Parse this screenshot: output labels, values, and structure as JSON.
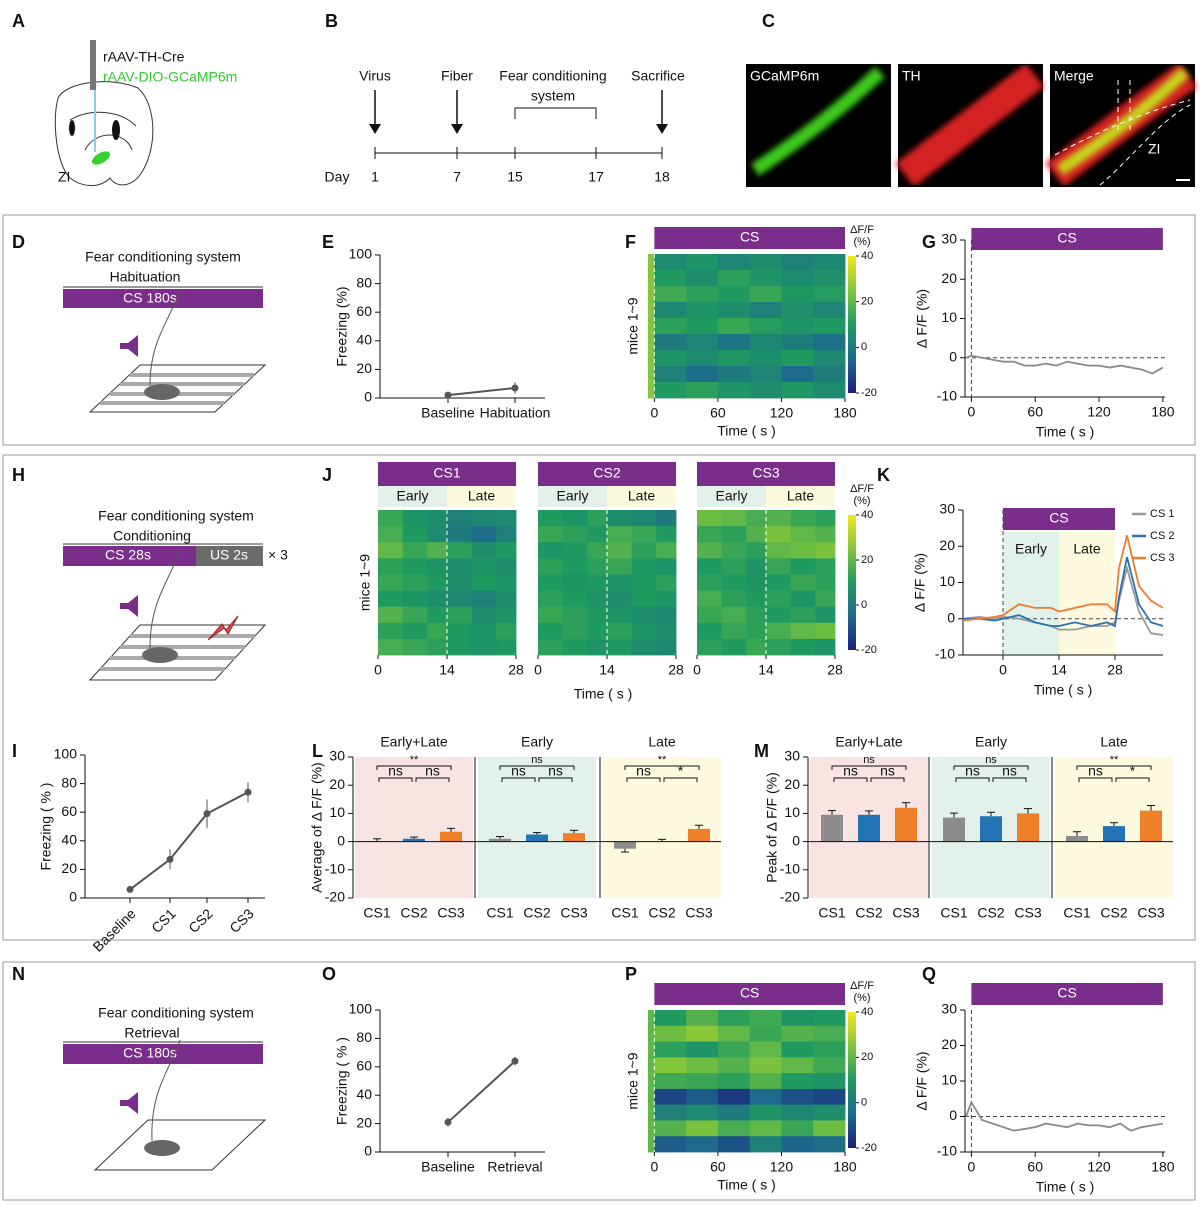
{
  "panel_letters": [
    "A",
    "B",
    "C",
    "D",
    "E",
    "F",
    "G",
    "H",
    "I",
    "J",
    "K",
    "L",
    "M",
    "N",
    "O",
    "P",
    "Q"
  ],
  "schematic_a": {
    "vectors": [
      "rAAV-TH-Cre",
      "rAAV-DIO-GCaMP6m"
    ],
    "region": "ZI"
  },
  "timeline_b": {
    "axis_label": "Day",
    "days": [
      1,
      7,
      15,
      17,
      18
    ],
    "events": [
      "Virus",
      "Fiber",
      "Sacrifice"
    ],
    "bracket_label": [
      "Fear conditioning",
      "system"
    ]
  },
  "images_c": {
    "titles": [
      "GCaMP6m",
      "TH",
      "Merge"
    ],
    "region": "ZI"
  },
  "protocol_d": {
    "lines": [
      "Fear conditioning system",
      "Habituation"
    ],
    "cs": "CS  180s"
  },
  "protocol_h": {
    "lines": [
      "Fear conditioning system",
      "Conditioning"
    ],
    "cs": "CS  28s",
    "us": "US  2s",
    "repeat": "× 3"
  },
  "protocol_n": {
    "lines": [
      "Fear conditioning system",
      "Retrieval"
    ],
    "cs": "CS  180s"
  },
  "chart_data": [
    {
      "type": "line-errorbar",
      "ylabel": "Freezing (%)",
      "categories": [
        "Baseline",
        "Habituation"
      ],
      "values": [
        2,
        7
      ],
      "errors": [
        1,
        4
      ],
      "color": "#555555",
      "ylim": [
        0,
        100
      ],
      "yticks": [
        0,
        20,
        40,
        60,
        80,
        100
      ]
    },
    {
      "type": "heatmap",
      "bar_label": "CS",
      "ylabel": "mice 1~9",
      "xlabel": "Time ( s )",
      "xlim": [
        -6,
        180
      ],
      "xticks": [
        0,
        60,
        120,
        180
      ],
      "xbins": [
        -6,
        0,
        30,
        60,
        90,
        120,
        150,
        180
      ],
      "rows": [
        [
          25,
          5,
          8,
          3,
          6,
          2,
          4
        ],
        [
          25,
          10,
          6,
          12,
          8,
          5,
          7
        ],
        [
          25,
          15,
          12,
          10,
          14,
          9,
          11
        ],
        [
          25,
          4,
          8,
          6,
          2,
          7,
          3
        ],
        [
          25,
          12,
          10,
          14,
          11,
          8,
          10
        ],
        [
          25,
          0,
          3,
          -2,
          4,
          1,
          -3
        ],
        [
          25,
          8,
          5,
          9,
          6,
          10,
          4
        ],
        [
          25,
          2,
          -4,
          0,
          3,
          -5,
          1
        ],
        [
          25,
          10,
          12,
          8,
          6,
          9,
          5
        ]
      ],
      "zlim": [
        -20,
        40
      ],
      "zticks": [
        -20,
        0,
        20,
        40
      ],
      "colorbar_label": [
        "ΔF/F",
        "(%)"
      ],
      "colormap": [
        "#1b1f7a",
        "#1d6a8c",
        "#1f9a60",
        "#82c63c",
        "#f5e61f"
      ]
    },
    {
      "type": "trace",
      "bar_label": "CS",
      "ylabel": "Δ F/F (%)",
      "xlabel": "Time ( s )",
      "xlim": [
        -6,
        182
      ],
      "xticks": [
        0,
        60,
        120,
        180
      ],
      "ylim": [
        -10,
        30
      ],
      "yticks": [
        -10,
        0,
        10,
        20,
        30
      ],
      "x": [
        -5,
        0,
        10,
        20,
        30,
        40,
        50,
        60,
        70,
        80,
        90,
        100,
        110,
        120,
        130,
        140,
        150,
        160,
        170,
        180
      ],
      "series": [
        {
          "color": "#8a8a8a",
          "values": [
            0,
            0.5,
            0,
            -0.5,
            -1,
            -1,
            -2,
            -2,
            -1.5,
            -2,
            -1,
            -1.5,
            -2,
            -2,
            -2.5,
            -2,
            -2.5,
            -3,
            -4,
            -2.5
          ]
        }
      ]
    },
    {
      "type": "heatmap-group",
      "ylabel": "mice 1~9",
      "xlabel": "Time ( s )",
      "xlim": [
        0,
        28
      ],
      "xticks": [
        0,
        14,
        28
      ],
      "xbins": [
        0,
        5,
        10,
        14,
        19,
        24,
        28
      ],
      "divider": 14,
      "segments": [
        "Early",
        "Late"
      ],
      "panels": [
        {
          "title": "CS1",
          "rows": [
            [
              14,
              8,
              6,
              2,
              4,
              5
            ],
            [
              16,
              10,
              5,
              0,
              -4,
              2
            ],
            [
              20,
              14,
              18,
              12,
              6,
              10
            ],
            [
              12,
              10,
              8,
              6,
              8,
              6
            ],
            [
              14,
              12,
              10,
              6,
              10,
              8
            ],
            [
              10,
              8,
              6,
              4,
              2,
              6
            ],
            [
              18,
              14,
              10,
              12,
              6,
              8
            ],
            [
              12,
              10,
              14,
              10,
              8,
              12
            ],
            [
              16,
              14,
              12,
              10,
              8,
              10
            ]
          ]
        },
        {
          "title": "CS2",
          "rows": [
            [
              10,
              8,
              12,
              6,
              4,
              0
            ],
            [
              14,
              12,
              10,
              16,
              14,
              10
            ],
            [
              8,
              10,
              14,
              18,
              12,
              16
            ],
            [
              12,
              10,
              12,
              14,
              10,
              8
            ],
            [
              10,
              8,
              10,
              8,
              10,
              12
            ],
            [
              12,
              10,
              8,
              6,
              10,
              8
            ],
            [
              14,
              12,
              10,
              8,
              6,
              4
            ],
            [
              10,
              12,
              10,
              12,
              8,
              6
            ],
            [
              12,
              10,
              8,
              10,
              6,
              4
            ]
          ]
        },
        {
          "title": "CS3",
          "rows": [
            [
              22,
              20,
              16,
              18,
              14,
              12
            ],
            [
              14,
              12,
              18,
              24,
              20,
              18
            ],
            [
              18,
              14,
              12,
              20,
              22,
              24
            ],
            [
              10,
              12,
              8,
              14,
              10,
              12
            ],
            [
              12,
              10,
              8,
              10,
              14,
              12
            ],
            [
              16,
              12,
              10,
              12,
              8,
              14
            ],
            [
              14,
              16,
              12,
              10,
              12,
              8
            ],
            [
              10,
              14,
              12,
              16,
              20,
              22
            ],
            [
              12,
              10,
              14,
              12,
              10,
              8
            ]
          ]
        }
      ],
      "zlim": [
        -20,
        40
      ],
      "zticks": [
        -20,
        0,
        20,
        40
      ],
      "colorbar_label": [
        "ΔF/F",
        "(%)"
      ],
      "colormap": [
        "#1b1f7a",
        "#1d6a8c",
        "#1f9a60",
        "#82c63c",
        "#f5e61f"
      ]
    },
    {
      "type": "trace",
      "bar_label": "CS",
      "segments": [
        "Early",
        "Late"
      ],
      "ylabel": "Δ F/F (%)",
      "xlabel": "Time ( s )",
      "xlim": [
        -10,
        40
      ],
      "xticks": [
        0,
        14,
        28
      ],
      "ylim": [
        -10,
        30
      ],
      "yticks": [
        -10,
        0,
        10,
        20,
        30
      ],
      "x": [
        -10,
        -6,
        -2,
        0,
        4,
        8,
        12,
        14,
        18,
        22,
        26,
        28,
        29,
        31,
        34,
        37,
        40
      ],
      "series": [
        {
          "name": "CS 1",
          "color": "#9a9a9a",
          "values": [
            0,
            0.5,
            0,
            0.5,
            0,
            -1,
            -2,
            -3,
            -3,
            -2,
            -2,
            -1,
            5,
            14,
            2,
            -4,
            -4.5
          ]
        },
        {
          "name": "CS 2",
          "color": "#2a72b0",
          "values": [
            0,
            0,
            -0.5,
            0,
            1,
            -1,
            -2,
            -2,
            -1,
            -2,
            -1,
            -2,
            6,
            17,
            4,
            -1,
            -2
          ]
        },
        {
          "name": "CS 3",
          "color": "#f07b35",
          "values": [
            -0.5,
            0,
            0.5,
            1,
            4,
            3,
            3,
            2,
            3,
            4,
            4,
            2,
            14,
            23,
            9,
            5,
            3
          ]
        }
      ]
    },
    {
      "type": "line-errorbar",
      "ylabel": "Freezing ( % )",
      "categories": [
        "Baseline",
        "CS1",
        "CS2",
        "CS3"
      ],
      "values": [
        6,
        27,
        59,
        74
      ],
      "errors": [
        2,
        7,
        10,
        7
      ],
      "color": "#555555",
      "ylim": [
        0,
        100
      ],
      "yticks": [
        0,
        20,
        40,
        60,
        80,
        100
      ]
    },
    {
      "type": "bar-groups",
      "ylabel": "Average of Δ F/F (%)",
      "categories": [
        "CS1",
        "CS2",
        "CS3"
      ],
      "colors": [
        "#8c8c8c",
        "#2474b5",
        "#f07f2a"
      ],
      "backgrounds": [
        "#f9e4e4",
        "#e2f2ea",
        "#fdfadf"
      ],
      "ylim": [
        -20,
        30
      ],
      "yticks": [
        -20,
        -10,
        0,
        10,
        20,
        30
      ],
      "groups": [
        {
          "title": "Early+Late",
          "values": [
            0.2,
            1,
            3.5
          ],
          "errors": [
            0.8,
            0.6,
            1.2
          ],
          "sig": [
            "**",
            "ns",
            "ns"
          ]
        },
        {
          "title": "Early",
          "values": [
            1,
            2.5,
            3
          ],
          "errors": [
            0.8,
            0.7,
            1
          ],
          "sig": [
            "ns",
            "ns",
            "ns"
          ]
        },
        {
          "title": "Late",
          "values": [
            -2.5,
            0,
            4.5
          ],
          "errors": [
            1.2,
            0.8,
            1.3
          ],
          "sig": [
            "**",
            "ns",
            "*"
          ]
        }
      ]
    },
    {
      "type": "bar-groups",
      "ylabel": "Peak of Δ F/F (%)",
      "categories": [
        "CS1",
        "CS2",
        "CS3"
      ],
      "colors": [
        "#8c8c8c",
        "#2474b5",
        "#f07f2a"
      ],
      "backgrounds": [
        "#f9e4e4",
        "#e2f2ea",
        "#fdfadf"
      ],
      "ylim": [
        -20,
        30
      ],
      "yticks": [
        -20,
        -10,
        0,
        10,
        20,
        30
      ],
      "groups": [
        {
          "title": "Early+Late",
          "values": [
            9.5,
            9.5,
            12
          ],
          "errors": [
            1.5,
            1.4,
            1.8
          ],
          "sig": [
            "ns",
            "ns",
            "ns"
          ]
        },
        {
          "title": "Early",
          "values": [
            8.5,
            9,
            10
          ],
          "errors": [
            1.6,
            1.4,
            1.7
          ],
          "sig": [
            "ns",
            "ns",
            "ns"
          ]
        },
        {
          "title": "Late",
          "values": [
            2,
            5.5,
            11
          ],
          "errors": [
            1.5,
            1.2,
            1.8
          ],
          "sig": [
            "**",
            "ns",
            "*"
          ]
        }
      ]
    },
    {
      "type": "line-errorbar",
      "ylabel": "Freezing ( % )",
      "categories": [
        "Baseline",
        "Retrieval"
      ],
      "values": [
        21,
        64
      ],
      "errors": [
        3,
        3
      ],
      "color": "#555555",
      "ylim": [
        0,
        100
      ],
      "yticks": [
        0,
        20,
        40,
        60,
        80,
        100
      ]
    },
    {
      "type": "heatmap",
      "bar_label": "CS",
      "ylabel": "mice 1~9",
      "xlabel": "Time ( s )",
      "xlim": [
        -6,
        180
      ],
      "xticks": [
        0,
        60,
        120,
        180
      ],
      "xbins": [
        -6,
        0,
        30,
        60,
        90,
        120,
        150,
        180
      ],
      "rows": [
        [
          20,
          10,
          18,
          12,
          15,
          8,
          10
        ],
        [
          20,
          22,
          26,
          20,
          14,
          18,
          16
        ],
        [
          20,
          12,
          8,
          14,
          20,
          10,
          12
        ],
        [
          20,
          25,
          22,
          18,
          24,
          20,
          15
        ],
        [
          20,
          15,
          14,
          12,
          18,
          10,
          8
        ],
        [
          20,
          -12,
          -8,
          -15,
          -5,
          -10,
          -12
        ],
        [
          20,
          2,
          5,
          0,
          8,
          4,
          6
        ],
        [
          20,
          18,
          24,
          16,
          20,
          14,
          22
        ],
        [
          20,
          -8,
          -5,
          -10,
          2,
          -6,
          -4
        ]
      ],
      "zlim": [
        -20,
        40
      ],
      "zticks": [
        -20,
        0,
        20,
        40
      ],
      "colorbar_label": [
        "ΔF/F",
        "(%)"
      ],
      "colormap": [
        "#1b1f7a",
        "#1d6a8c",
        "#1f9a60",
        "#82c63c",
        "#f5e61f"
      ]
    },
    {
      "type": "trace",
      "bar_label": "CS",
      "ylabel": "Δ F/F (%)",
      "xlabel": "Time ( s )",
      "xlim": [
        -6,
        182
      ],
      "xticks": [
        0,
        60,
        120,
        180
      ],
      "ylim": [
        -10,
        30
      ],
      "yticks": [
        -10,
        0,
        10,
        20,
        30
      ],
      "x": [
        -5,
        0,
        10,
        20,
        30,
        40,
        50,
        60,
        70,
        80,
        90,
        100,
        110,
        120,
        130,
        140,
        150,
        160,
        170,
        180
      ],
      "series": [
        {
          "color": "#8a8a8a",
          "values": [
            0,
            4,
            -1,
            -2,
            -3,
            -4,
            -3.5,
            -3,
            -2,
            -2.5,
            -3,
            -2,
            -2.5,
            -2.5,
            -3,
            -2,
            -4,
            -3,
            -2.5,
            -2
          ]
        }
      ]
    }
  ]
}
